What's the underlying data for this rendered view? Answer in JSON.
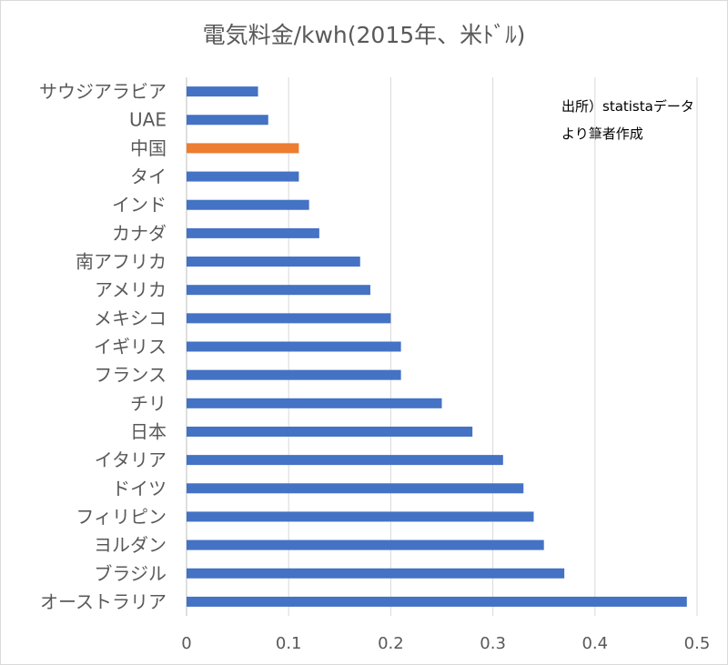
{
  "chart_data": {
    "type": "bar",
    "orientation": "horizontal",
    "title": "電気料金/kwh(2015年、米ﾄﾞﾙ)",
    "annotation": [
      "出所）statistaデータ",
      "より筆者作成"
    ],
    "categories": [
      "サウジアラビア",
      "UAE",
      "中国",
      "タイ",
      "インド",
      "カナダ",
      "南アフリカ",
      "アメリカ",
      "メキシコ",
      "イギリス",
      "フランス",
      "チリ",
      "日本",
      "イタリア",
      "ドイツ",
      "フィリピン",
      "ヨルダン",
      "ブラジル",
      "オーストラリア"
    ],
    "values": [
      0.07,
      0.08,
      0.11,
      0.11,
      0.12,
      0.13,
      0.17,
      0.18,
      0.2,
      0.21,
      0.21,
      0.25,
      0.28,
      0.31,
      0.33,
      0.34,
      0.35,
      0.37,
      0.49
    ],
    "xlim": [
      0,
      0.5
    ],
    "xticks": [
      "0",
      "0.1",
      "0.2",
      "0.3",
      "0.4",
      "0.5"
    ],
    "grid": true,
    "colors": {
      "default": "#4472c4",
      "highlight": "#ed7d31",
      "grid": "#d9d9d9",
      "axis": "#bfbfbf"
    },
    "highlight_category": "中国"
  }
}
